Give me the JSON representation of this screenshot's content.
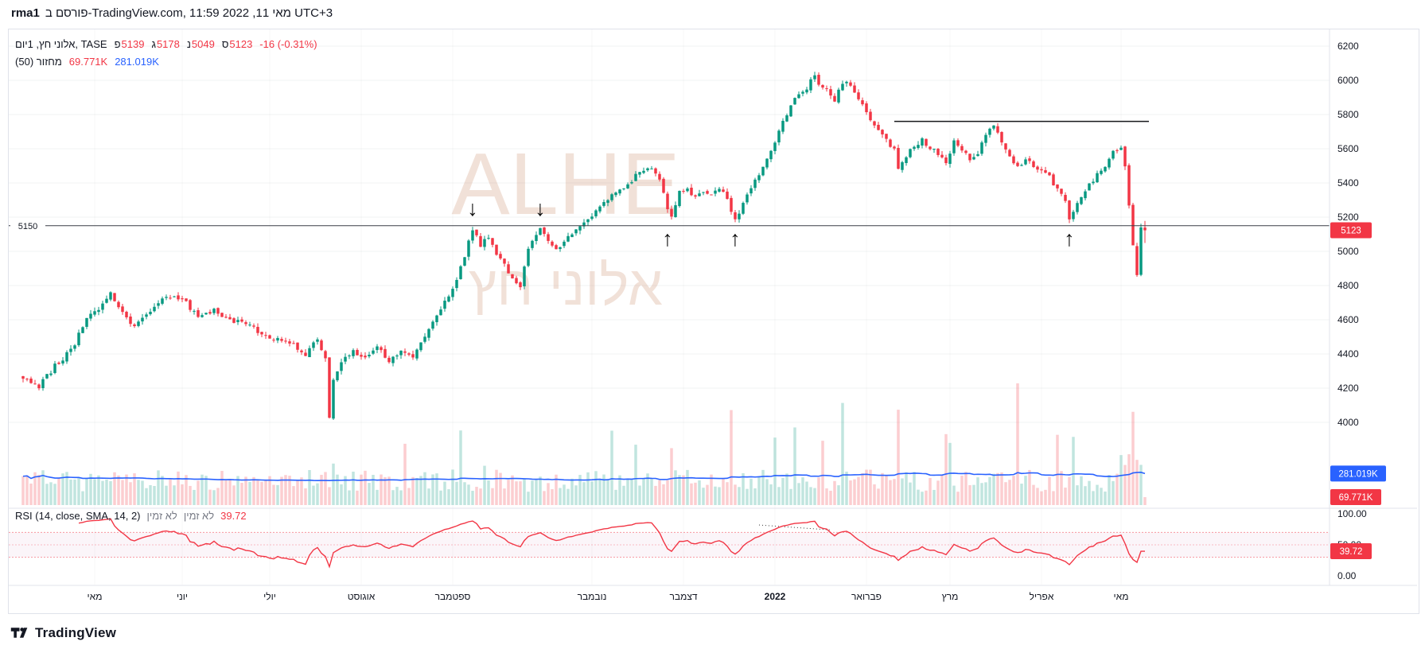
{
  "attribution": {
    "author": "rma1",
    "text": "פורסם ב-TradingView.com, מאי 11, 2022 11:59 UTC+3"
  },
  "legend": {
    "title": "אלוני חץ, 1יום, TASE",
    "ohlc": [
      {
        "key": "פ",
        "value": "5139"
      },
      {
        "key": "ג",
        "value": "5178"
      },
      {
        "key": "נ",
        "value": "5049"
      },
      {
        "key": "ס",
        "value": "5123"
      }
    ],
    "change": "-16 (-0.31%)",
    "volume_row": {
      "label": "מחזור (50)",
      "value": "69.771K",
      "ma_value": "281.019K"
    },
    "rsi_row": {
      "label": "RSI (14, close, SMA, 14, 2)",
      "na1": "לא זמין",
      "na2": "לא זמין",
      "value": "39.72"
    }
  },
  "badges": {
    "price": "5123",
    "volume": "69.771K",
    "volume_ma": "281.019K",
    "rsi": "39.72"
  },
  "watermark": {
    "line1": "ALHE",
    "line2": "אלוני חץ"
  },
  "footer": {
    "brand": "TradingView"
  },
  "colors": {
    "up": "#089981",
    "down": "#f23645",
    "vol_up": "rgba(8,153,129,0.25)",
    "vol_down": "rgba(242,54,69,0.25)",
    "volume_ma": "#2962ff",
    "badge_blue": "#2962ff",
    "rsi_line": "#f23645",
    "rsi_band_line": "rgba(242,54,69,0.5)",
    "rsi_band_mid": "rgba(242,54,69,0.3)",
    "rsi_fill": "rgba(186,80,158,0.06)",
    "grid": "rgba(42,46,57,0.06)",
    "vgrid": "rgba(42,46,57,0.04)",
    "axis_text": "#131722",
    "separator": "#e0e3eb",
    "level_line": "#3a3e46",
    "trend_line": "#17191c",
    "marker": "#111111",
    "watermark_color": "rgba(210,155,125,0.30)"
  },
  "chart_data": {
    "type": "candlestick",
    "symbol": "ALHE",
    "exchange": "TASE",
    "name": "אלוני חץ",
    "interval": "1יום",
    "days": 283,
    "last_candle": {
      "open": 5139,
      "high": 5178,
      "low": 5049,
      "close": 5123,
      "change": -16,
      "change_pct": -0.31
    },
    "price_axis_ticks": [
      6200,
      6000,
      5800,
      5600,
      5400,
      5200,
      5000,
      4800,
      4600,
      4400,
      4200,
      4000
    ],
    "price_path": [
      [
        0,
        4270
      ],
      [
        4,
        4210
      ],
      [
        8,
        4330
      ],
      [
        12,
        4420
      ],
      [
        16,
        4600
      ],
      [
        20,
        4680
      ],
      [
        22,
        4760
      ],
      [
        25,
        4650
      ],
      [
        28,
        4550
      ],
      [
        32,
        4650
      ],
      [
        36,
        4730
      ],
      [
        40,
        4720
      ],
      [
        44,
        4620
      ],
      [
        48,
        4650
      ],
      [
        52,
        4600
      ],
      [
        56,
        4580
      ],
      [
        60,
        4520
      ],
      [
        64,
        4480
      ],
      [
        68,
        4450
      ],
      [
        71,
        4400
      ],
      [
        74,
        4480
      ],
      [
        76,
        4380
      ],
      [
        77,
        4020
      ],
      [
        78,
        4250
      ],
      [
        80,
        4350
      ],
      [
        83,
        4420
      ],
      [
        86,
        4380
      ],
      [
        89,
        4440
      ],
      [
        92,
        4350
      ],
      [
        95,
        4420
      ],
      [
        98,
        4380
      ],
      [
        100,
        4480
      ],
      [
        103,
        4580
      ],
      [
        106,
        4700
      ],
      [
        109,
        4820
      ],
      [
        111,
        4980
      ],
      [
        113,
        5120
      ],
      [
        115,
        5040
      ],
      [
        117,
        5080
      ],
      [
        119,
        4980
      ],
      [
        121,
        4920
      ],
      [
        123,
        4840
      ],
      [
        125,
        4800
      ],
      [
        127,
        5000
      ],
      [
        129,
        5100
      ],
      [
        130,
        5140
      ],
      [
        132,
        5060
      ],
      [
        134,
        5010
      ],
      [
        136,
        5060
      ],
      [
        138,
        5110
      ],
      [
        140,
        5140
      ],
      [
        142,
        5180
      ],
      [
        144,
        5240
      ],
      [
        146,
        5280
      ],
      [
        148,
        5320
      ],
      [
        150,
        5360
      ],
      [
        152,
        5380
      ],
      [
        154,
        5440
      ],
      [
        156,
        5470
      ],
      [
        158,
        5490
      ],
      [
        160,
        5430
      ],
      [
        162,
        5240
      ],
      [
        163,
        5190
      ],
      [
        165,
        5340
      ],
      [
        167,
        5360
      ],
      [
        169,
        5320
      ],
      [
        171,
        5360
      ],
      [
        173,
        5340
      ],
      [
        175,
        5380
      ],
      [
        177,
        5300
      ],
      [
        179,
        5180
      ],
      [
        181,
        5280
      ],
      [
        183,
        5360
      ],
      [
        185,
        5450
      ],
      [
        187,
        5540
      ],
      [
        189,
        5650
      ],
      [
        191,
        5760
      ],
      [
        193,
        5860
      ],
      [
        195,
        5920
      ],
      [
        197,
        5960
      ],
      [
        199,
        6040
      ],
      [
        200,
        5980
      ],
      [
        202,
        5940
      ],
      [
        204,
        5880
      ],
      [
        205,
        5960
      ],
      [
        207,
        6000
      ],
      [
        209,
        5940
      ],
      [
        211,
        5860
      ],
      [
        213,
        5780
      ],
      [
        215,
        5720
      ],
      [
        217,
        5650
      ],
      [
        219,
        5600
      ],
      [
        220,
        5490
      ],
      [
        222,
        5560
      ],
      [
        224,
        5610
      ],
      [
        226,
        5650
      ],
      [
        228,
        5610
      ],
      [
        230,
        5560
      ],
      [
        232,
        5530
      ],
      [
        234,
        5640
      ],
      [
        236,
        5600
      ],
      [
        238,
        5540
      ],
      [
        240,
        5580
      ],
      [
        242,
        5680
      ],
      [
        244,
        5740
      ],
      [
        246,
        5640
      ],
      [
        248,
        5560
      ],
      [
        250,
        5490
      ],
      [
        252,
        5540
      ],
      [
        254,
        5500
      ],
      [
        256,
        5460
      ],
      [
        258,
        5430
      ],
      [
        260,
        5370
      ],
      [
        262,
        5280
      ],
      [
        263,
        5200
      ],
      [
        265,
        5290
      ],
      [
        267,
        5360
      ],
      [
        269,
        5420
      ],
      [
        271,
        5470
      ],
      [
        273,
        5540
      ],
      [
        274,
        5580
      ],
      [
        275,
        5600
      ],
      [
        276,
        5620
      ],
      [
        277,
        5500
      ],
      [
        278,
        5280
      ],
      [
        279,
        5050
      ],
      [
        280,
        4850
      ],
      [
        281,
        5139
      ],
      [
        282,
        5123
      ]
    ],
    "levels": {
      "horizontal_line": {
        "price": 5150,
        "label": "5150"
      },
      "resistance_segment": {
        "price": 5760,
        "from_day": 219,
        "to_day": 283
      }
    },
    "markers": {
      "down_glyph": "↓",
      "up_glyph": "↑",
      "down_days": [
        113,
        130
      ],
      "up_days": [
        162,
        179,
        263
      ]
    },
    "months": [
      {
        "label": "מאי",
        "day": 18
      },
      {
        "label": "יוני",
        "day": 40
      },
      {
        "label": "יולי",
        "day": 62
      },
      {
        "label": "אוגוסט",
        "day": 85
      },
      {
        "label": "ספטמבר",
        "day": 108
      },
      {
        "label": "נובמבר",
        "day": 143
      },
      {
        "label": "דצמבר",
        "day": 166
      },
      {
        "label": "2022",
        "day": 189,
        "bold": true
      },
      {
        "label": "פברואר",
        "day": 212
      },
      {
        "label": "מרץ",
        "day": 233
      },
      {
        "label": "אפריל",
        "day": 256
      },
      {
        "label": "מאי",
        "day": 276
      }
    ],
    "volume": {
      "ma_period": 50,
      "last_value": 69771,
      "ma_last_value": 281019,
      "spikes": {
        "110": 840000,
        "154": 680000,
        "189": 760000,
        "206": 1150000,
        "233": 700000,
        "279": 1050000
      }
    },
    "rsi": {
      "period": 14,
      "source": "close",
      "ma_type": "SMA",
      "ma_length": 14,
      "last_value": 39.72,
      "bands": [
        70,
        50,
        30
      ],
      "axis_ticks": [
        "100.00",
        "50.00",
        "0.00"
      ],
      "divergence_line": {
        "from": [
          185,
          82
        ],
        "to": [
          203,
          74
        ]
      }
    }
  }
}
